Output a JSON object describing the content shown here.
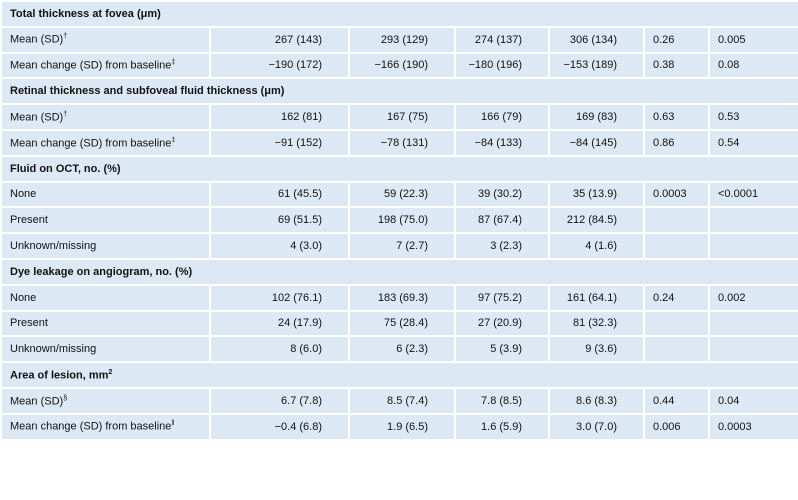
{
  "sections": [
    {
      "title": "Total thickness at fovea (μm)",
      "rows": [
        {
          "label": "Mean (SD)",
          "note": "†",
          "cells": [
            "267 (143)",
            "293 (129)",
            "274 (137)",
            "306 (134)",
            "0.26",
            "0.005"
          ]
        },
        {
          "label": "Mean change (SD) from baseline",
          "note": "‡",
          "cells": [
            "−190 (172)",
            "−166 (190)",
            "−180 (196)",
            "−153 (189)",
            "0.38",
            "0.08"
          ]
        }
      ]
    },
    {
      "title": "Retinal thickness and subfoveal fluid thickness (μm)",
      "rows": [
        {
          "label": "Mean (SD)",
          "note": "†",
          "cells": [
            "162 (81)",
            "167 (75)",
            "166 (79)",
            "169 (83)",
            "0.63",
            "0.53"
          ]
        },
        {
          "label": "Mean change (SD) from baseline",
          "note": "‡",
          "cells": [
            "−91 (152)",
            "−78 (131)",
            "−84 (133)",
            "−84 (145)",
            "0.86",
            "0.54"
          ]
        }
      ]
    },
    {
      "title": "Fluid on OCT, no. (%)",
      "rows": [
        {
          "label": "None",
          "cells": [
            "61 (45.5)",
            "59 (22.3)",
            "39 (30.2)",
            "35 (13.9)",
            "0.0003",
            "<0.0001"
          ]
        },
        {
          "label": "Present",
          "cells": [
            "69 (51.5)",
            "198 (75.0)",
            "87 (67.4)",
            "212 (84.5)"
          ]
        },
        {
          "label": "Unknown/missing",
          "cells": [
            "4 (3.0)",
            "7 (2.7)",
            "3 (2.3)",
            "4 (1.6)"
          ]
        }
      ]
    },
    {
      "title": "Dye leakage on angiogram, no. (%)",
      "rows": [
        {
          "label": "None",
          "cells": [
            "102 (76.1)",
            "183 (69.3)",
            "97 (75.2)",
            "161 (64.1)",
            "0.24",
            "0.002"
          ]
        },
        {
          "label": "Present",
          "cells": [
            "24 (17.9)",
            "75 (28.4)",
            "27 (20.9)",
            "81 (32.3)"
          ]
        },
        {
          "label": "Unknown/missing",
          "cells": [
            "8 (6.0)",
            "6 (2.3)",
            "5 (3.9)",
            "9 (3.6)"
          ]
        }
      ]
    },
    {
      "title": "Area of lesion, mm",
      "title_sup": "2",
      "rows": [
        {
          "label": "Mean (SD)",
          "note": "§",
          "cells": [
            "6.7 (7.8)",
            "8.5 (7.4)",
            "7.8 (8.5)",
            "8.6 (8.3)",
            "0.44",
            "0.04"
          ]
        },
        {
          "label": "Mean change (SD) from baseline",
          "note": "ǁ",
          "cells": [
            "−0.4 (6.8)",
            "1.9 (6.5)",
            "1.6 (5.9)",
            "3.0 (7.0)",
            "0.006",
            "0.0003"
          ]
        }
      ]
    }
  ]
}
